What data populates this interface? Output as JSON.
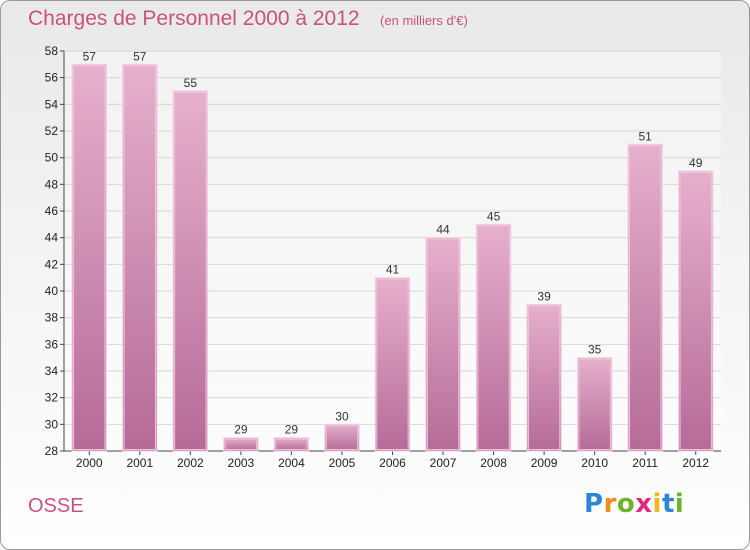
{
  "chart_data": {
    "type": "bar",
    "title": "Charges de Personnel 2000 à 2012",
    "subtitle": "(en milliers d'€)",
    "categories": [
      "2000",
      "2001",
      "2002",
      "2003",
      "2004",
      "2005",
      "2006",
      "2007",
      "2008",
      "2009",
      "2010",
      "2011",
      "2012"
    ],
    "values": [
      57,
      57,
      55,
      29,
      29,
      30,
      41,
      44,
      45,
      39,
      35,
      51,
      49
    ],
    "ylim": [
      28,
      58
    ],
    "yticks": [
      28,
      30,
      32,
      34,
      36,
      38,
      40,
      42,
      44,
      46,
      48,
      50,
      52,
      54,
      56,
      58
    ],
    "xlabel": "",
    "ylabel": "",
    "grid": true,
    "colors": {
      "bar": "#d58fb7",
      "bar_light": "#e6b0cc",
      "bar_dark": "#b56b98",
      "title": "#c8527d",
      "grid": "#d7d7d7"
    }
  },
  "footer": {
    "commune": "OSSE",
    "logo_letters": [
      {
        "ch": "P",
        "color": "#2a86d6"
      },
      {
        "ch": "r",
        "color": "#f08d1a"
      },
      {
        "ch": "o",
        "color": "#6bb42c"
      },
      {
        "ch": "x",
        "color": "#e3297b"
      },
      {
        "ch": "i",
        "color": "#f2b51b"
      },
      {
        "ch": "t",
        "color": "#2a86d6"
      },
      {
        "ch": "i",
        "color": "#6bb42c"
      }
    ]
  }
}
